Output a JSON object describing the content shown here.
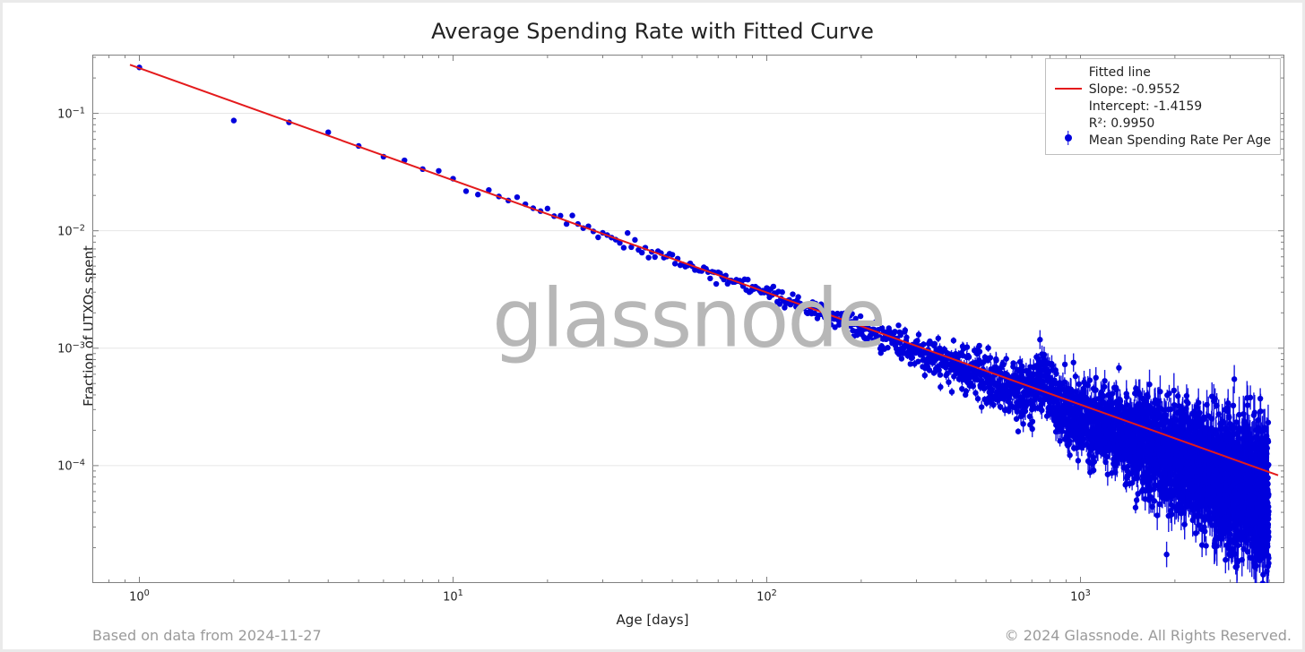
{
  "chart": {
    "type": "scatter-loglog-with-fit",
    "title": "Average Spending Rate with Fitted Curve",
    "title_fontsize": 24,
    "xlabel": "Age [days]",
    "ylabel": "Fraction of UTXOs spent",
    "label_fontsize": 15,
    "tick_fontsize": 13,
    "background_color": "#ffffff",
    "frame_border_color": "#eaeaea",
    "axis_color": "#808080",
    "grid_color": "#e6e6e6",
    "grid_on": true,
    "x_scale": "log",
    "y_scale": "log",
    "xlim_log10": [
      -0.15,
      3.65
    ],
    "ylim_log10": [
      -5.0,
      -0.5
    ],
    "x_tick_exponents": [
      0,
      1,
      2,
      3
    ],
    "y_tick_exponents": [
      -4,
      -3,
      -2,
      -1
    ],
    "watermark_text": "glassnode",
    "watermark_color": "#b7b7b7",
    "watermark_fontsize": 90,
    "footer_left": "Based on data from 2024-11-27",
    "footer_right": "© 2024 Glassnode. All Rights Reserved.",
    "footer_color": "#9a9a9a",
    "footer_fontsize": 16,
    "fit": {
      "label_line1": "Fitted line",
      "label_line2": "Slope: -0.9552",
      "label_line3": "Intercept: -1.4159",
      "label_line4": "R²: 0.9950",
      "slope": -0.9552,
      "intercept_log10": -0.6149,
      "color": "#e41a1c",
      "width": 2
    },
    "scatter": {
      "label": "Mean Spending Rate Per Age",
      "color": "#0000dd",
      "marker_radius": 3.2,
      "errorbar_width": 1.4,
      "n_points": 1400,
      "noise_sigma_log10_early": 0.03,
      "noise_sigma_log10_late": 0.3,
      "late_bias_log10": -0.25,
      "spike_x_log10": 2.88,
      "spike_height_log10": 0.22,
      "spike_width_log10": 0.03,
      "err_frac_early": 0.0,
      "err_frac_late": 0.22
    },
    "legend": {
      "border_color": "#bfbfbf",
      "background": "#ffffff",
      "fontsize": 14
    }
  }
}
